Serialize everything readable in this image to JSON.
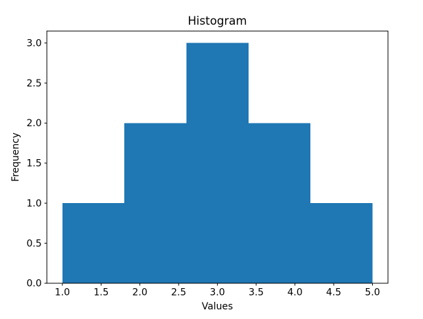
{
  "chart_data": {
    "type": "bar",
    "subtype": "histogram",
    "title": "Histogram",
    "xlabel": "Values",
    "ylabel": "Frequency",
    "bin_edges": [
      1.0,
      1.8,
      2.6,
      3.4,
      4.2,
      5.0
    ],
    "frequencies": [
      1,
      2,
      3,
      2,
      1
    ],
    "xticks": {
      "values": [
        1.0,
        1.5,
        2.0,
        2.5,
        3.0,
        3.5,
        4.0,
        4.5,
        5.0
      ],
      "labels": [
        "1.0",
        "1.5",
        "2.0",
        "2.5",
        "3.0",
        "3.5",
        "4.0",
        "4.5",
        "5.0"
      ]
    },
    "yticks": {
      "values": [
        0.0,
        0.5,
        1.0,
        1.5,
        2.0,
        2.5,
        3.0
      ],
      "labels": [
        "0.0",
        "0.5",
        "1.0",
        "1.5",
        "2.0",
        "2.5",
        "3.0"
      ]
    },
    "xlim": [
      0.8,
      5.2
    ],
    "ylim": [
      0,
      3.15
    ],
    "bar_color": "#1f77b4",
    "axis_color": "#000000",
    "background": "#ffffff",
    "grid": false,
    "legend_position": null
  }
}
